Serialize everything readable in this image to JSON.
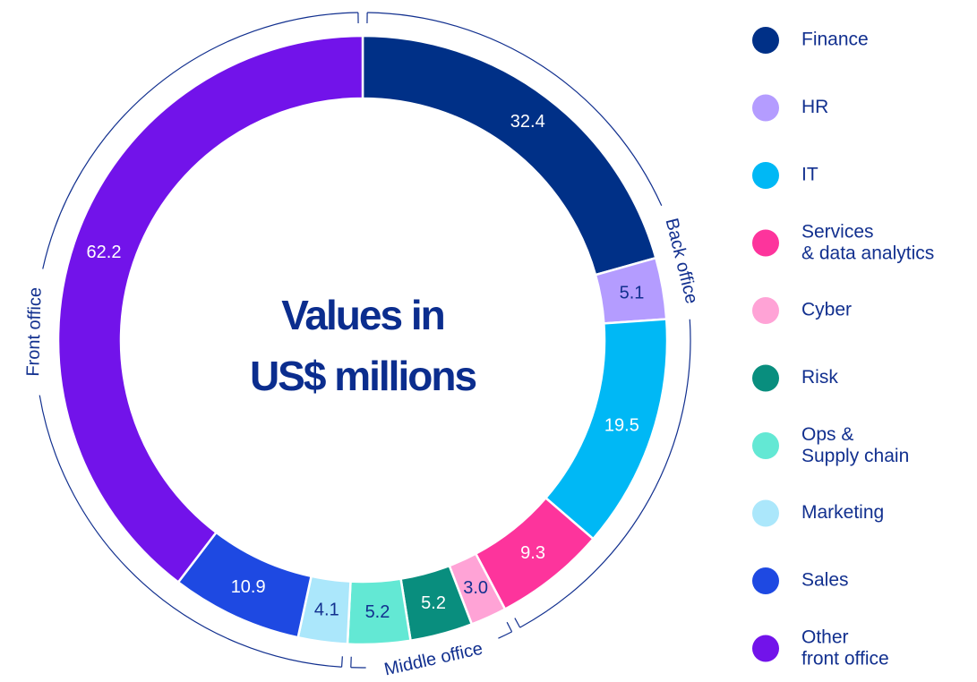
{
  "chart_data": {
    "type": "donut",
    "title_lines": [
      "Values in",
      "US$ millions"
    ],
    "categories": [
      "Finance",
      "HR",
      "IT",
      "Services\n& data analytics",
      "Cyber",
      "Risk",
      "Ops &\nSupply chain",
      "Marketing",
      "Sales",
      "Other\nfront office"
    ],
    "values": [
      32.4,
      5.1,
      19.5,
      9.3,
      3.0,
      5.2,
      5.2,
      4.1,
      10.9,
      62.2
    ],
    "value_labels": [
      "32.4",
      "5.1",
      "19.5",
      "9.3",
      "3.0",
      "5.2",
      "5.2",
      "4.1",
      "10.9",
      "62.2"
    ],
    "colors": [
      "#003087",
      "#b49cff",
      "#00b8f5",
      "#fd349c",
      "#ffa3d6",
      "#098e7e",
      "#63e8d4",
      "#abe7fb",
      "#1e49e2",
      "#7213ea"
    ],
    "groups": [
      {
        "name": "Back office",
        "members": [
          "Finance",
          "HR",
          "IT",
          "Services\n& data analytics"
        ]
      },
      {
        "name": "Middle office",
        "members": [
          "Cyber",
          "Risk",
          "Ops &\nSupply chain"
        ]
      },
      {
        "name": "Front office",
        "members": [
          "Marketing",
          "Sales",
          "Other\nfront office"
        ]
      }
    ],
    "legend": "right"
  }
}
